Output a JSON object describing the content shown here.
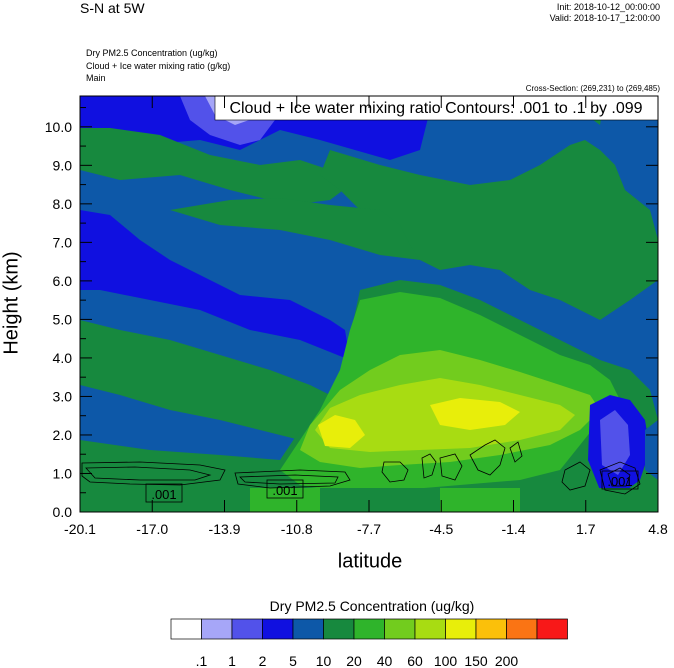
{
  "header": {
    "title": "S-N at 5W",
    "init": "Init: 2018-10-12_00:00:00",
    "valid": "Valid: 2018-10-17_12:00:00",
    "field1": "Dry PM2.5 Concentration   (ug/kg)",
    "field2": "Cloud + Ice water mixing ratio   (g/kg)",
    "field3": "Main",
    "cross_section": "Cross-Section: (269,231) to (269,485)"
  },
  "contour_info": "Cloud + Ice water mixing ratio Contours: .001 to .1 by .099",
  "chart_data": {
    "type": "heatmap",
    "xlabel": "latitude",
    "ylabel": "Height (km)",
    "x_ticks": [
      "-20.1",
      "-17.0",
      "-13.9",
      "-10.8",
      "-7.7",
      "-4.5",
      "-1.4",
      "1.7",
      "4.8"
    ],
    "y_ticks": [
      "0.0",
      "1.0",
      "2.0",
      "3.0",
      "4.0",
      "5.0",
      "6.0",
      "7.0",
      "8.0",
      "9.0",
      "10.0"
    ],
    "xlim": [
      -20.1,
      4.8
    ],
    "ylim": [
      0,
      10.8
    ],
    "colorbar": {
      "title": "Dry PM2.5 Concentration  (ug/kg)",
      "levels": [
        ".1",
        "1",
        "2",
        "5",
        "10",
        "20",
        "40",
        "60",
        "100",
        "150",
        "200"
      ],
      "colors": [
        "#ffffff",
        "#a6a6f8",
        "#5252ea",
        "#1010e0",
        "#0d58a8",
        "#17893e",
        "#2fb42b",
        "#72cc1e",
        "#a8dc12",
        "#e8ee0a",
        "#fbc00a",
        "#fa7414",
        "#f81818"
      ]
    },
    "contour_labels": [
      ".001",
      ".001",
      ".001"
    ]
  }
}
